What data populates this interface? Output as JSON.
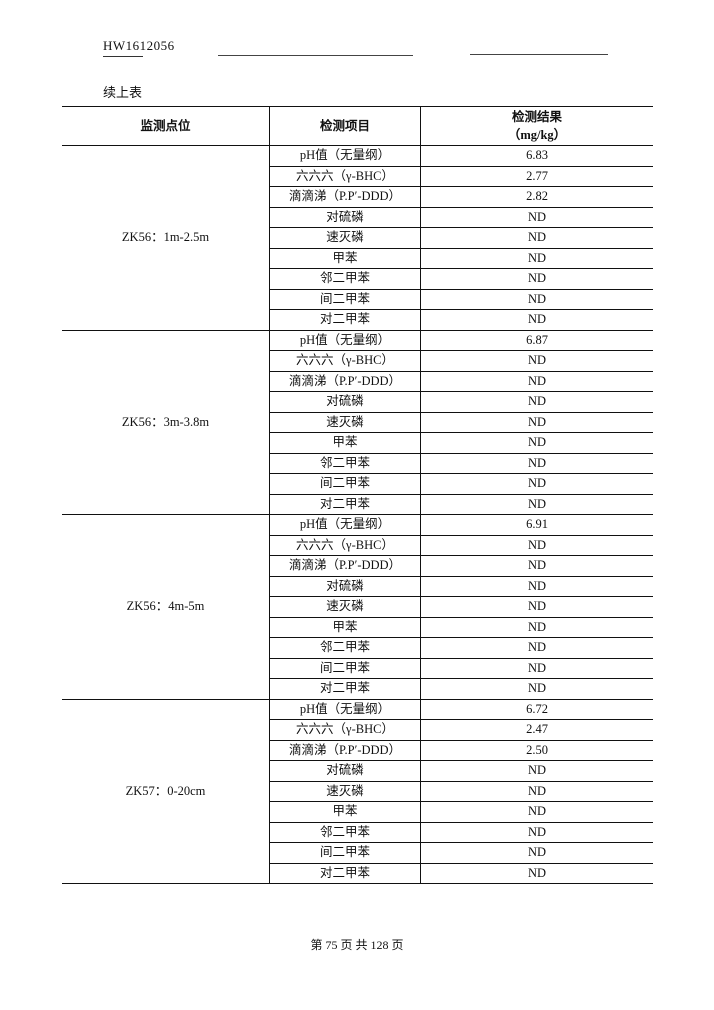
{
  "header": {
    "doc_id": "HW1612056",
    "continued": "续上表"
  },
  "table": {
    "columns": [
      "监测点位",
      "检测项目",
      "检测结果",
      "（mg/kg）"
    ],
    "items": [
      "pH值（无量纲）",
      "六六六（γ-BHC）",
      "滴滴涕（P.P′-DDD）",
      "对硫磷",
      "速灭磷",
      "甲苯",
      "邻二甲苯",
      "间二甲苯",
      "对二甲苯"
    ],
    "groups": [
      {
        "site": "ZK56：1m-2.5m",
        "results": [
          "6.83",
          "2.77",
          "2.82",
          "ND",
          "ND",
          "ND",
          "ND",
          "ND",
          "ND"
        ]
      },
      {
        "site": "ZK56：3m-3.8m",
        "results": [
          "6.87",
          "ND",
          "ND",
          "ND",
          "ND",
          "ND",
          "ND",
          "ND",
          "ND"
        ]
      },
      {
        "site": "ZK56：4m-5m",
        "results": [
          "6.91",
          "ND",
          "ND",
          "ND",
          "ND",
          "ND",
          "ND",
          "ND",
          "ND"
        ]
      },
      {
        "site": "ZK57：0-20cm",
        "results": [
          "6.72",
          "2.47",
          "2.50",
          "ND",
          "ND",
          "ND",
          "ND",
          "ND",
          "ND"
        ]
      }
    ]
  },
  "footer": {
    "page": "第 75 页 共 128 页"
  }
}
